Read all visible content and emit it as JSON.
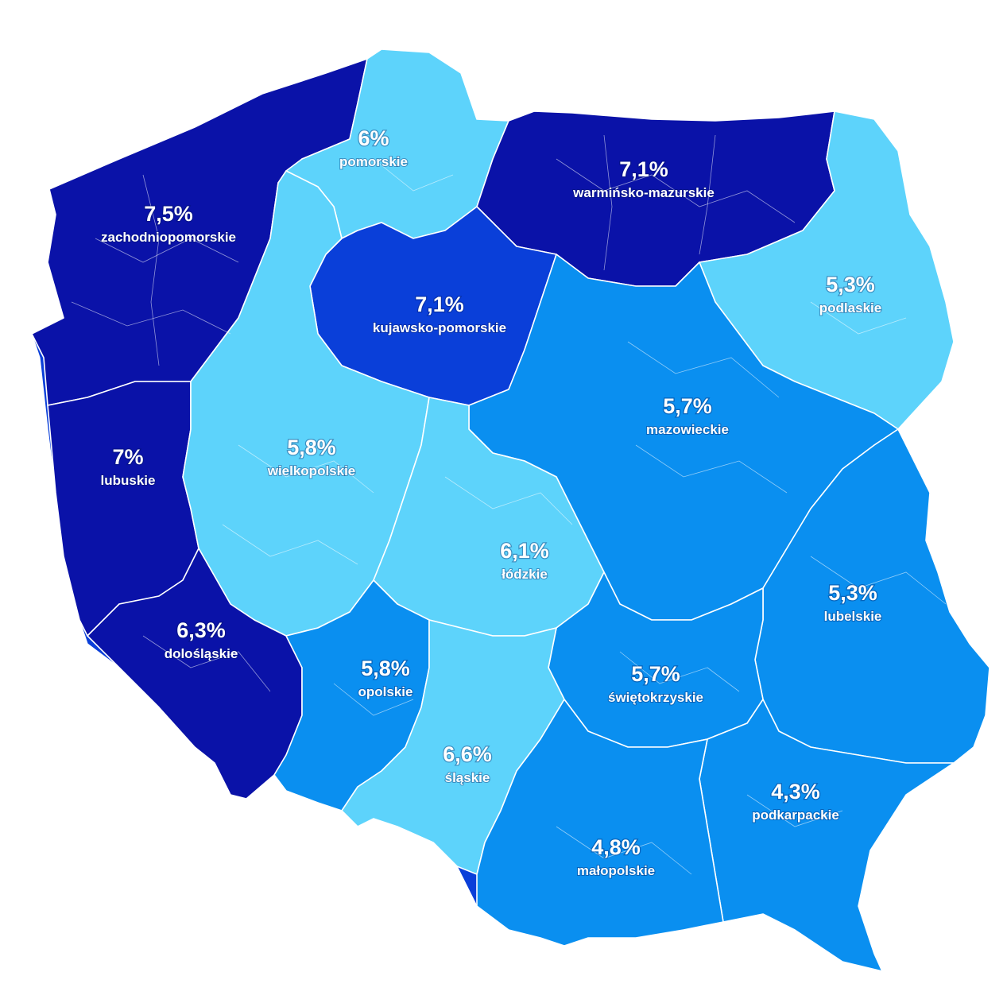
{
  "colors": {
    "darkest": "#0a12a8",
    "dark": "#0a3fd9",
    "medium": "#0a8ff0",
    "light": "#5dd3fb",
    "background": "#ffffff",
    "label_text": "#ffffff"
  },
  "regions": [
    {
      "id": "zachodniopomorskie",
      "name": "zachodniopomorskie",
      "value": "7,5%",
      "tone": "darkest"
    },
    {
      "id": "pomorskie",
      "name": "pomorskie",
      "value": "6%",
      "tone": "light"
    },
    {
      "id": "warminsko-mazurskie",
      "name": "warmińsko-mazurskie",
      "value": "7,1%",
      "tone": "darkest"
    },
    {
      "id": "podlaskie",
      "name": "podlaskie",
      "value": "5,3%",
      "tone": "light"
    },
    {
      "id": "kujawsko-pomorskie",
      "name": "kujawsko-pomorskie",
      "value": "7,1%",
      "tone": "dark"
    },
    {
      "id": "lubuskie",
      "name": "lubuskie",
      "value": "7%",
      "tone": "darkest"
    },
    {
      "id": "wielkopolskie",
      "name": "wielkopolskie",
      "value": "5,8%",
      "tone": "light"
    },
    {
      "id": "mazowieckie",
      "name": "mazowieckie",
      "value": "5,7%",
      "tone": "medium"
    },
    {
      "id": "lodzkie",
      "name": "łódzkie",
      "value": "6,1%",
      "tone": "light"
    },
    {
      "id": "lubelskie",
      "name": "lubelskie",
      "value": "5,3%",
      "tone": "medium"
    },
    {
      "id": "dolnoslaskie",
      "name": "dolośląskie",
      "value": "6,3%",
      "tone": "darkest"
    },
    {
      "id": "opolskie",
      "name": "opolskie",
      "value": "5,8%",
      "tone": "medium"
    },
    {
      "id": "swietokrzyskie",
      "name": "świętokrzyskie",
      "value": "5,7%",
      "tone": "medium"
    },
    {
      "id": "slaskie",
      "name": "śląskie",
      "value": "6,6%",
      "tone": "light"
    },
    {
      "id": "podkarpackie",
      "name": "podkarpackie",
      "value": "4,3%",
      "tone": "medium"
    },
    {
      "id": "malopolskie",
      "name": "małopolskie",
      "value": "4,8%",
      "tone": "medium"
    }
  ]
}
